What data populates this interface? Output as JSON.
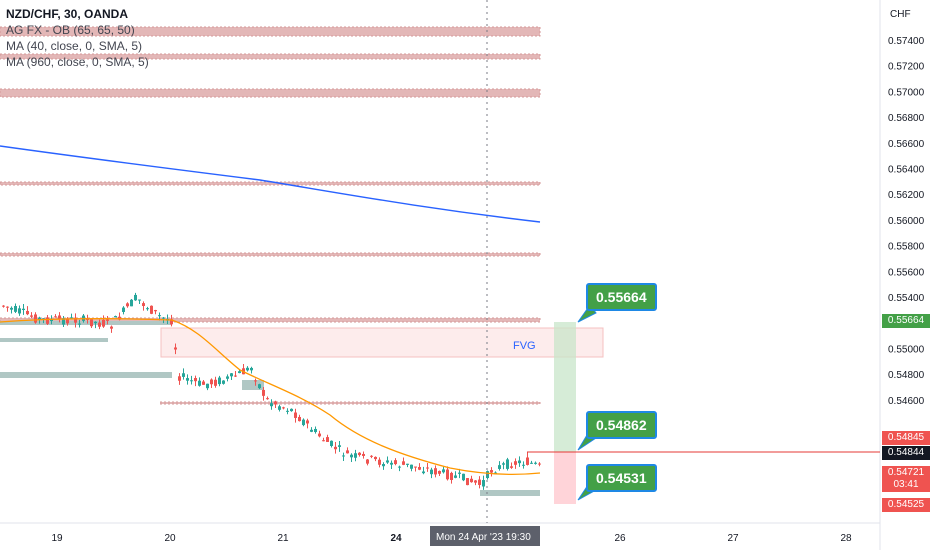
{
  "legend": {
    "symbol": "NZD/CHF, 30, OANDA",
    "ind1": "AG FX - OB (65, 65, 50)",
    "ind2": "MA (40, close, 0, SMA, 5)",
    "ind3": "MA (960, close, 0, SMA, 5)"
  },
  "axis": {
    "currency": "CHF",
    "price_ticks": [
      "0.57400",
      "0.57200",
      "0.57000",
      "0.56800",
      "0.56600",
      "0.56400",
      "0.56200",
      "0.56000",
      "0.55800",
      "0.55600",
      "0.55400",
      "0.55200",
      "0.55000",
      "0.54800",
      "0.54600"
    ],
    "time_ticks": [
      "19",
      "20",
      "21",
      "24",
      "26",
      "27",
      "28"
    ],
    "crosshair_time": "Mon 24 Apr '23   19:30"
  },
  "annotations": {
    "fvg": "FVG",
    "target": "0.55664",
    "entry": "0.54862",
    "stop": "0.54531"
  },
  "price_tags": {
    "target": "0.55664",
    "tag2": "0.54845",
    "last": "0.54844",
    "current": "0.54721",
    "countdown": "03:41",
    "stop": "0.54525"
  },
  "colors": {
    "up": "#26a69a",
    "down": "#ef5350",
    "ma40": "#ff9800",
    "ma960": "#2962ff",
    "ob_zone": "#e8b4b4",
    "green_zone": "#4caf50",
    "red_zone": "#f44336"
  }
}
